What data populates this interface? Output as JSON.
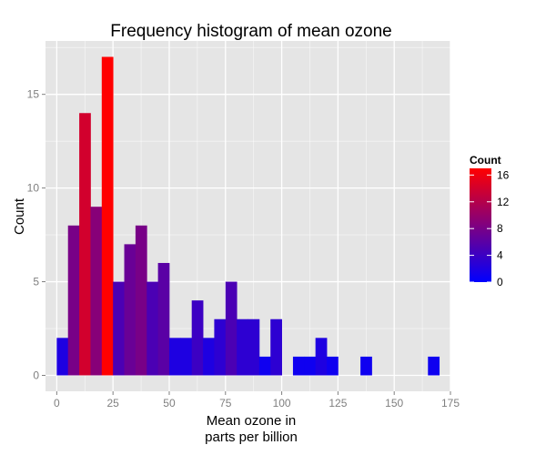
{
  "chart_data": {
    "type": "bar",
    "title": "Frequency histogram of mean ozone",
    "xlabel_lines": [
      "Mean ozone in",
      "parts per billion"
    ],
    "ylabel": "Count",
    "xlim": [
      -5,
      175
    ],
    "ylim": [
      -0.85,
      17.85
    ],
    "x_ticks": [
      0,
      25,
      50,
      75,
      100,
      125,
      150,
      175
    ],
    "y_ticks": [
      0,
      5,
      10,
      15
    ],
    "grid": true,
    "bin_width": 5,
    "bins": [
      {
        "start": 0,
        "count": 2
      },
      {
        "start": 5,
        "count": 8
      },
      {
        "start": 10,
        "count": 14
      },
      {
        "start": 15,
        "count": 9
      },
      {
        "start": 20,
        "count": 17
      },
      {
        "start": 25,
        "count": 5
      },
      {
        "start": 30,
        "count": 7
      },
      {
        "start": 35,
        "count": 8
      },
      {
        "start": 40,
        "count": 5
      },
      {
        "start": 45,
        "count": 6
      },
      {
        "start": 50,
        "count": 2
      },
      {
        "start": 55,
        "count": 2
      },
      {
        "start": 60,
        "count": 4
      },
      {
        "start": 65,
        "count": 2
      },
      {
        "start": 70,
        "count": 3
      },
      {
        "start": 75,
        "count": 5
      },
      {
        "start": 80,
        "count": 3
      },
      {
        "start": 85,
        "count": 3
      },
      {
        "start": 90,
        "count": 1
      },
      {
        "start": 95,
        "count": 3
      },
      {
        "start": 105,
        "count": 1
      },
      {
        "start": 110,
        "count": 1
      },
      {
        "start": 115,
        "count": 2
      },
      {
        "start": 120,
        "count": 1
      },
      {
        "start": 135,
        "count": 1
      },
      {
        "start": 165,
        "count": 1
      }
    ],
    "legend": {
      "title": "Count",
      "position": "right",
      "breaks": [
        0,
        4,
        8,
        12,
        16
      ],
      "range": [
        0,
        17
      ],
      "low_color": "#0000ff",
      "high_color": "#ff0000"
    },
    "colors": {
      "panel_background": "#e5e5e5",
      "gridline": "#ffffff"
    }
  }
}
